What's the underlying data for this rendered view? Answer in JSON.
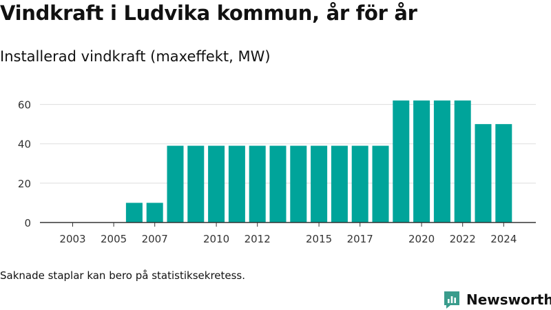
{
  "title": "Vindkraft i Ludvika kommun, år för år",
  "subtitle": "Installerad vindkraft (maxeffekt, MW)",
  "footnote": "Saknade staplar kan bero på statistiksekretess.",
  "brand": {
    "name": "Newsworthy",
    "icon": "newsworthy-logo-icon"
  },
  "colors": {
    "bar": "#00a49a",
    "brand": "#3a9c8c",
    "grid": "#dddddd",
    "axis": "#333333"
  },
  "chart_data": {
    "type": "bar",
    "categories": [
      "2003",
      "2004",
      "2005",
      "2006",
      "2007",
      "2008",
      "2009",
      "2010",
      "2011",
      "2012",
      "2013",
      "2014",
      "2015",
      "2016",
      "2017",
      "2018",
      "2019",
      "2020",
      "2021",
      "2022",
      "2023",
      "2024"
    ],
    "values": [
      0,
      0,
      0,
      10,
      10,
      39,
      39,
      39,
      39,
      39,
      39,
      39,
      39,
      39,
      39,
      39,
      62,
      62,
      62,
      62,
      50,
      50
    ],
    "x_tick_labels": [
      "2003",
      "2005",
      "2007",
      "2010",
      "2012",
      "2015",
      "2017",
      "2020",
      "2022",
      "2024"
    ],
    "y_ticks": [
      0,
      20,
      40,
      60
    ],
    "ylim": [
      0,
      70
    ],
    "grid": true
  }
}
